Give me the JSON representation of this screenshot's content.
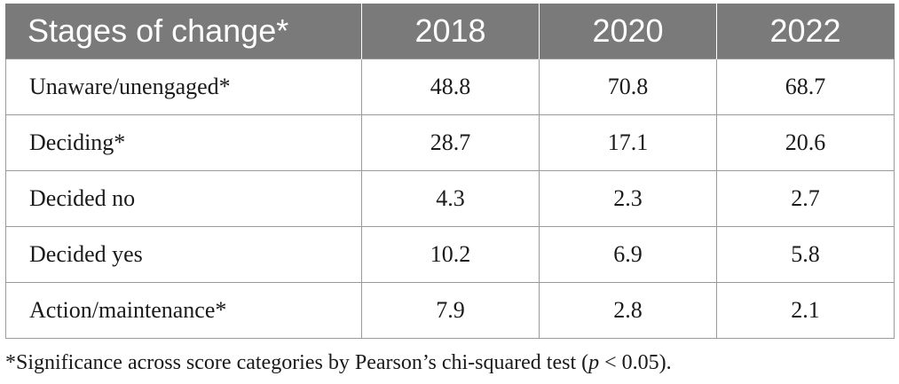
{
  "table": {
    "header": {
      "stub": "Stages of change*",
      "years": [
        "2018",
        "2020",
        "2022"
      ]
    },
    "rows": [
      {
        "label": "Unaware/unengaged*",
        "values": [
          "48.8",
          "70.8",
          "68.7"
        ]
      },
      {
        "label": "Deciding*",
        "values": [
          "28.7",
          "17.1",
          "20.6"
        ]
      },
      {
        "label": "Decided no",
        "values": [
          "4.3",
          "2.3",
          "2.7"
        ]
      },
      {
        "label": "Decided yes",
        "values": [
          "10.2",
          "6.9",
          "5.8"
        ]
      },
      {
        "label": "Action/maintenance*",
        "values": [
          "7.9",
          "2.8",
          "2.1"
        ]
      }
    ]
  },
  "footnote": {
    "before": "*Significance across score categories by Pearson’s chi-squared test (",
    "pvar": "p",
    "after": " < 0.05)."
  },
  "colors": {
    "header_bg": "#7a7a7a",
    "header_text": "#ffffff",
    "border": "#9a9a9a"
  }
}
